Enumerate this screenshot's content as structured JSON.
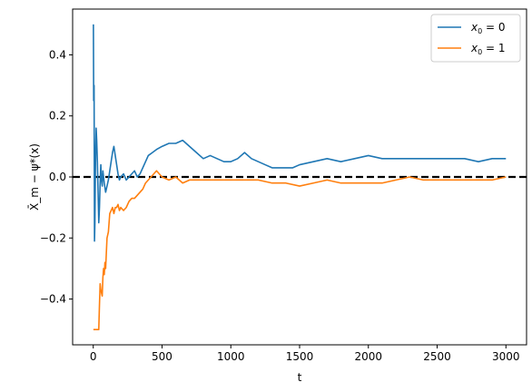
{
  "chart_data": {
    "type": "line",
    "xlabel": "t",
    "ylabel": "X̄_m − ψ*(x)",
    "xlim": [
      -150,
      3150
    ],
    "ylim": [
      -0.55,
      0.55
    ],
    "xticks": [
      0,
      500,
      1000,
      1500,
      2000,
      2500,
      3000
    ],
    "xtick_labels": [
      "0",
      "500",
      "1000",
      "1500",
      "2000",
      "2500",
      "3000"
    ],
    "yticks": [
      0.4,
      0.2,
      0.0,
      -0.2,
      -0.4
    ],
    "ytick_labels": [
      "0.4",
      "0.2",
      "0.0",
      "−0.2",
      "−0.4"
    ],
    "grid": false,
    "legend_position": "top-right",
    "reference_line": {
      "y": 0.0,
      "style": "dashed",
      "color": "#000000"
    },
    "series": [
      {
        "name": "x₀ = 0",
        "label_main": "x",
        "label_sub": "0",
        "label_rest": " = 0",
        "color": "#1f77b4",
        "x": [
          1,
          3,
          6,
          9,
          12,
          15,
          18,
          21,
          25,
          30,
          35,
          40,
          45,
          50,
          55,
          60,
          65,
          70,
          75,
          80,
          90,
          100,
          110,
          120,
          130,
          140,
          150,
          160,
          170,
          180,
          190,
          200,
          220,
          240,
          260,
          280,
          300,
          320,
          340,
          360,
          380,
          400,
          430,
          460,
          500,
          550,
          600,
          650,
          700,
          750,
          800,
          850,
          900,
          950,
          1000,
          1050,
          1100,
          1150,
          1200,
          1250,
          1300,
          1350,
          1400,
          1450,
          1500,
          1600,
          1700,
          1800,
          1900,
          2000,
          2100,
          2200,
          2300,
          2400,
          2500,
          2600,
          2700,
          2800,
          2900,
          3000
        ],
        "y": [
          0.5,
          0.25,
          0.3,
          -0.21,
          -0.15,
          0.0,
          0.1,
          0.16,
          0.12,
          0.05,
          -0.05,
          -0.15,
          -0.1,
          -0.02,
          0.04,
          -0.01,
          -0.03,
          0.02,
          0.0,
          -0.02,
          -0.05,
          -0.03,
          -0.01,
          0.02,
          0.05,
          0.08,
          0.1,
          0.07,
          0.04,
          0.01,
          -0.01,
          0.0,
          0.01,
          -0.01,
          0.0,
          0.01,
          0.02,
          0.0,
          0.01,
          0.03,
          0.05,
          0.07,
          0.08,
          0.09,
          0.1,
          0.11,
          0.11,
          0.12,
          0.1,
          0.08,
          0.06,
          0.07,
          0.06,
          0.05,
          0.05,
          0.06,
          0.08,
          0.06,
          0.05,
          0.04,
          0.03,
          0.03,
          0.03,
          0.03,
          0.04,
          0.05,
          0.06,
          0.05,
          0.06,
          0.07,
          0.06,
          0.06,
          0.06,
          0.06,
          0.06,
          0.06,
          0.06,
          0.05,
          0.06,
          0.06
        ]
      },
      {
        "name": "x₀ = 1",
        "label_main": "x",
        "label_sub": "0",
        "label_rest": " = 1",
        "color": "#ff7f0e",
        "x": [
          1,
          10,
          20,
          30,
          40,
          45,
          50,
          55,
          60,
          65,
          70,
          75,
          80,
          85,
          90,
          95,
          100,
          110,
          120,
          130,
          140,
          150,
          160,
          170,
          180,
          190,
          200,
          220,
          240,
          260,
          280,
          300,
          320,
          340,
          360,
          380,
          400,
          420,
          440,
          460,
          480,
          500,
          550,
          600,
          650,
          700,
          750,
          800,
          900,
          1000,
          1100,
          1200,
          1300,
          1400,
          1500,
          1600,
          1700,
          1800,
          1900,
          2000,
          2100,
          2200,
          2300,
          2400,
          2500,
          2600,
          2700,
          2800,
          2900,
          3000
        ],
        "y": [
          -0.5,
          -0.5,
          -0.5,
          -0.5,
          -0.5,
          -0.42,
          -0.35,
          -0.37,
          -0.38,
          -0.39,
          -0.33,
          -0.3,
          -0.32,
          -0.28,
          -0.3,
          -0.25,
          -0.2,
          -0.18,
          -0.12,
          -0.11,
          -0.1,
          -0.12,
          -0.1,
          -0.1,
          -0.09,
          -0.11,
          -0.1,
          -0.11,
          -0.1,
          -0.08,
          -0.07,
          -0.07,
          -0.06,
          -0.05,
          -0.04,
          -0.02,
          -0.01,
          0.0,
          0.01,
          0.02,
          0.01,
          0.0,
          -0.01,
          0.0,
          -0.02,
          -0.01,
          -0.01,
          -0.01,
          -0.01,
          -0.01,
          -0.01,
          -0.01,
          -0.02,
          -0.02,
          -0.03,
          -0.02,
          -0.01,
          -0.02,
          -0.02,
          -0.02,
          -0.02,
          -0.01,
          0.0,
          -0.01,
          -0.01,
          -0.01,
          -0.01,
          -0.01,
          -0.01,
          0.0
        ]
      }
    ]
  }
}
